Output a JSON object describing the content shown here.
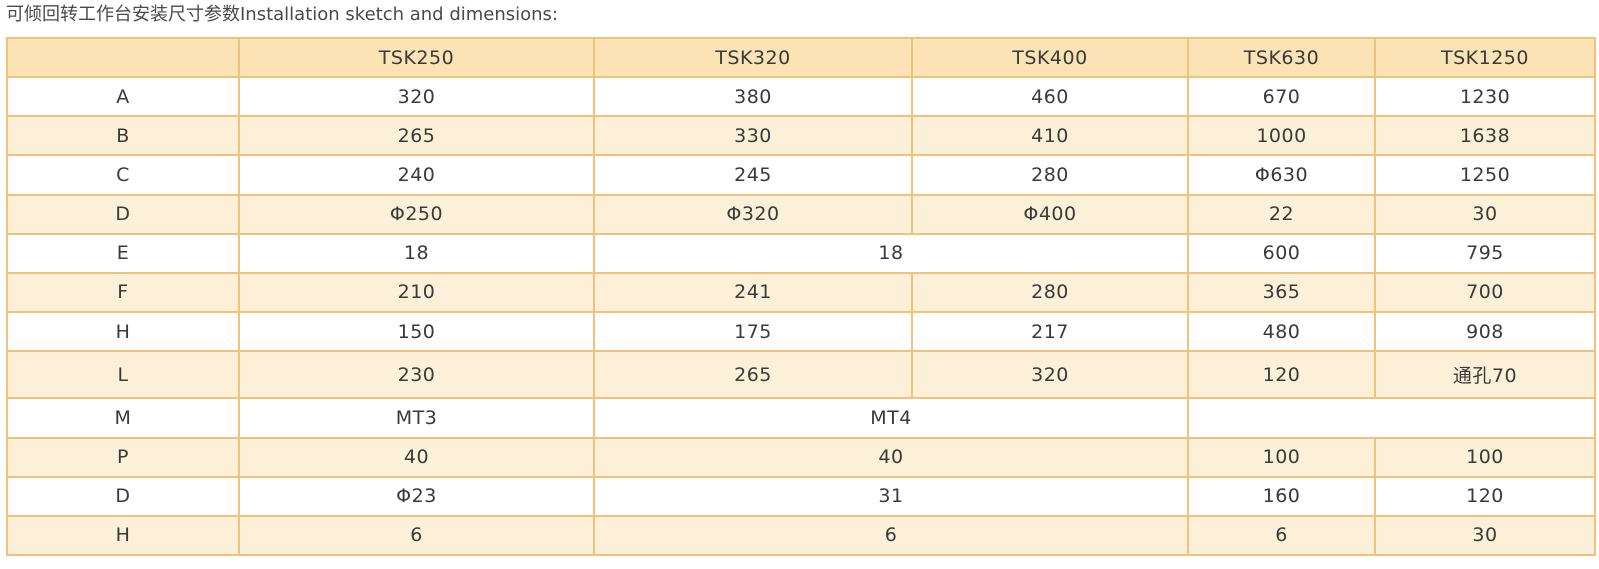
{
  "title": "可倾回转工作台安装尺寸参数Installation sketch and dimensions:",
  "table": {
    "header": [
      "",
      "TSK250",
      "TSK320",
      "TSK400",
      "TSK630",
      "TSK1250"
    ],
    "rows": [
      {
        "label": "A",
        "cells": [
          "320",
          "380",
          "460",
          "670",
          "1230"
        ]
      },
      {
        "label": "B",
        "cells": [
          "265",
          "330",
          "410",
          "1000",
          "1638"
        ]
      },
      {
        "label": "C",
        "cells": [
          "240",
          "245",
          "280",
          "Φ630",
          "1250"
        ]
      },
      {
        "label": "D",
        "cells": [
          "Φ250",
          "Φ320",
          "Φ400",
          "22",
          "30"
        ]
      },
      {
        "label": "E",
        "cells": [
          "18",
          "18",
          "600",
          "795"
        ]
      },
      {
        "label": "F",
        "cells": [
          "210",
          "241",
          "280",
          "365",
          "700"
        ]
      },
      {
        "label": "H",
        "cells": [
          "150",
          "175",
          "217",
          "480",
          "908"
        ]
      },
      {
        "label": "L",
        "cells": [
          "230",
          "265",
          "320",
          "120",
          "通孔70"
        ]
      },
      {
        "label": "M",
        "cells": [
          "MT3",
          "MT4",
          ""
        ]
      },
      {
        "label": "P",
        "cells": [
          "40",
          "40",
          "100",
          "100"
        ]
      },
      {
        "label": "D",
        "cells": [
          "Φ23",
          "31",
          "160",
          "120"
        ]
      },
      {
        "label": "H",
        "cells": [
          "6",
          "6",
          "6",
          "30"
        ]
      }
    ]
  },
  "colors": {
    "border": "#f0c27a",
    "header_bg": "#fbe3b6",
    "stripe_bg": "#fdf0d8"
  }
}
